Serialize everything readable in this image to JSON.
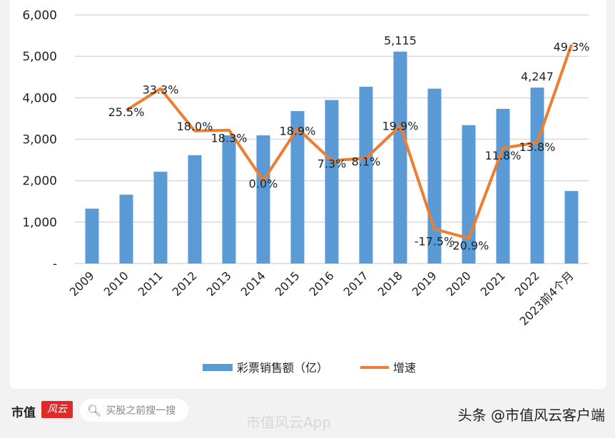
{
  "chart_data": {
    "type": "bar+line",
    "categories": [
      "2009",
      "2010",
      "2011",
      "2012",
      "2013",
      "2014",
      "2015",
      "2016",
      "2017",
      "2018",
      "2019",
      "2020",
      "2021",
      "2022",
      "2023前4个月"
    ],
    "series": [
      {
        "name": "彩票销售额（亿）",
        "type": "bar",
        "color": "#5b9bd5",
        "values": [
          1325,
          1662,
          2216,
          2615,
          3093,
          3093,
          3679,
          3946,
          4267,
          5115,
          4221,
          3340,
          3733,
          4247,
          1750
        ],
        "data_labels": [
          null,
          null,
          null,
          null,
          null,
          null,
          null,
          null,
          null,
          "5,115",
          null,
          null,
          null,
          "4,247",
          null
        ]
      },
      {
        "name": "增速",
        "type": "line",
        "color": "#ed7d31",
        "axis": "secondary",
        "values": [
          null,
          25.5,
          33.3,
          18.0,
          18.3,
          0.0,
          18.9,
          7.3,
          8.1,
          19.9,
          -17.5,
          -20.9,
          11.8,
          13.8,
          49.3
        ],
        "data_labels": [
          null,
          "25.5%",
          "33.3%",
          "18.0%",
          "18.3%",
          "0.0%",
          "18.9%",
          "7.3%",
          "8.1%",
          "19.9%",
          "-17.5%",
          "-20.9%",
          "11.8%",
          "13.8%",
          "49.3%"
        ]
      }
    ],
    "ylim": [
      0,
      6000
    ],
    "y2lim": [
      -30,
      60
    ],
    "yticks": [
      "-",
      "1,000",
      "2,000",
      "3,000",
      "4,000",
      "5,000",
      "6,000"
    ],
    "grid": true,
    "legend_position": "bottom"
  },
  "footer": {
    "brand": "市值",
    "brand_logo": "风云",
    "search_placeholder": "买股之前搜一搜",
    "watermark": "市值风云App",
    "credit": "头条 @市值风云客户端"
  }
}
